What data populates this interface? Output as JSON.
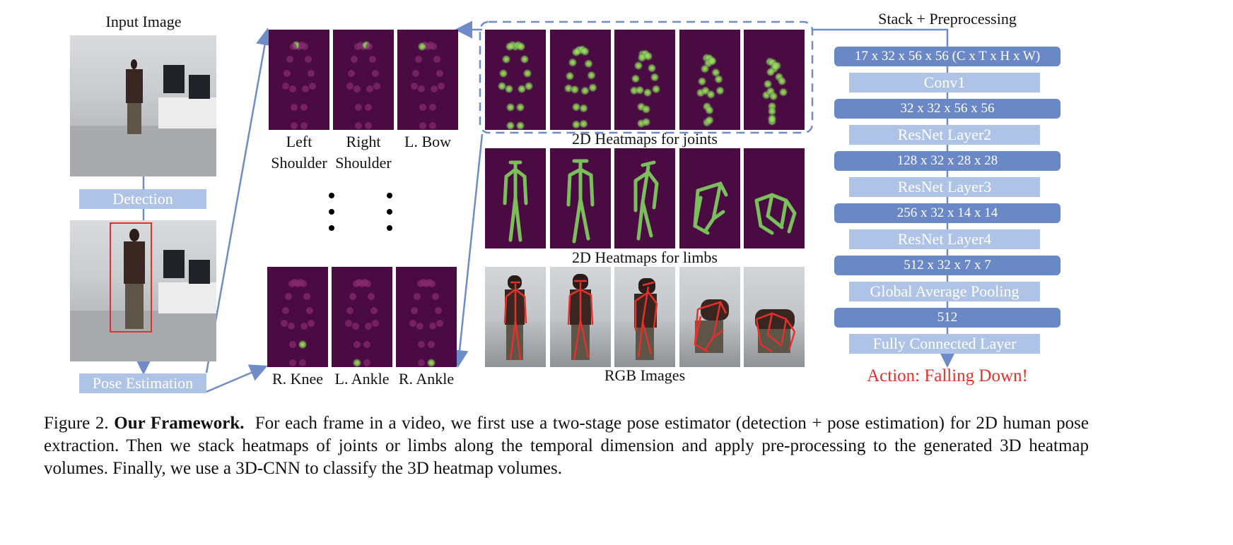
{
  "input_image_title": "Input Image",
  "detection_label": "Detection",
  "pose_estimation_label": "Pose Estimation",
  "joints": {
    "top": [
      {
        "line1": "Left",
        "line2": "Shoulder"
      },
      {
        "line1": "Right",
        "line2": "Shoulder"
      },
      {
        "line1": "L. Bow",
        "line2": ""
      }
    ],
    "bottom": [
      "R. Knee",
      "L. Ankle",
      "R. Ankle"
    ]
  },
  "heatmaps_joints_label": "2D Heatmaps for joints",
  "heatmaps_limbs_label": "2D Heatmaps for limbs",
  "rgb_images_label": "RGB Images",
  "stack_title": "Stack + Preprocessing",
  "network": [
    {
      "text": "17 x 32 x 56 x 56 (C x T x H x W)",
      "kind": "tensor"
    },
    {
      "text": "Conv1",
      "kind": "layer"
    },
    {
      "text": "32 x 32 x 56 x 56",
      "kind": "tensor"
    },
    {
      "text": "ResNet Layer2",
      "kind": "layer"
    },
    {
      "text": "128 x 32 x 28 x 28",
      "kind": "tensor"
    },
    {
      "text": "ResNet Layer3",
      "kind": "layer"
    },
    {
      "text": "256 x 32 x 14 x 14",
      "kind": "tensor"
    },
    {
      "text": "ResNet Layer4",
      "kind": "layer"
    },
    {
      "text": "512 x 32 x 7 x 7",
      "kind": "tensor"
    },
    {
      "text": "Global Average Pooling",
      "kind": "layer"
    },
    {
      "text": "512",
      "kind": "tensor"
    },
    {
      "text": "Fully Connected Layer",
      "kind": "layer"
    }
  ],
  "action_output": "Action: Falling Down!",
  "caption": {
    "figure_number": "Figure 2.",
    "title": "Our Framework.",
    "body": "For each frame in a video, we first use a two-stage pose estimator (detection + pose estimation) for 2D human pose extraction. Then we stack heatmaps of joints or limbs along the temporal dimension and apply pre-processing to the generated 3D heatmap volumes. Finally, we use a 3D-CNN to classify the 3D heatmap volumes."
  },
  "colors": {
    "arrow": "#6f8cc9",
    "tensor_box": "#6b88c6",
    "layer_box": "#aec3e6",
    "heatmap_bg": "#4a0b42",
    "heat_glow": "#7fd35f",
    "bbox": "#e8302a",
    "action_text": "#e8302a"
  }
}
